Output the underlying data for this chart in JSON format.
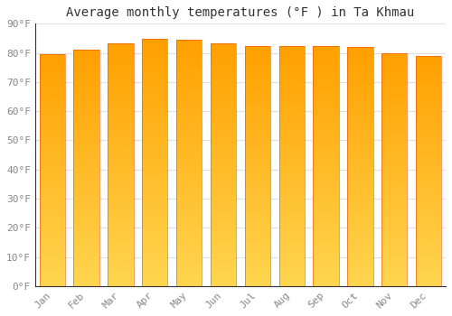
{
  "title": "Average monthly temperatures (°F ) in Ta Khmau",
  "months": [
    "Jan",
    "Feb",
    "Mar",
    "Apr",
    "May",
    "Jun",
    "Jul",
    "Aug",
    "Sep",
    "Oct",
    "Nov",
    "Dec"
  ],
  "values": [
    79.5,
    81.0,
    83.3,
    84.7,
    84.5,
    83.3,
    82.4,
    82.4,
    82.2,
    81.9,
    79.9,
    78.8
  ],
  "ylim": [
    0,
    90
  ],
  "yticks": [
    0,
    10,
    20,
    30,
    40,
    50,
    60,
    70,
    80,
    90
  ],
  "ytick_labels": [
    "0°F",
    "10°F",
    "20°F",
    "30°F",
    "40°F",
    "50°F",
    "60°F",
    "70°F",
    "80°F",
    "90°F"
  ],
  "bg_color": "#FFFFFF",
  "grid_color": "#E0E0E0",
  "title_fontsize": 10,
  "tick_fontsize": 8,
  "bar_width": 0.75,
  "bar_color_bottom": "#FFD54F",
  "bar_color_top": "#FFA000",
  "bar_edge_color": "#E65100",
  "bar_edge_width": 0.4
}
